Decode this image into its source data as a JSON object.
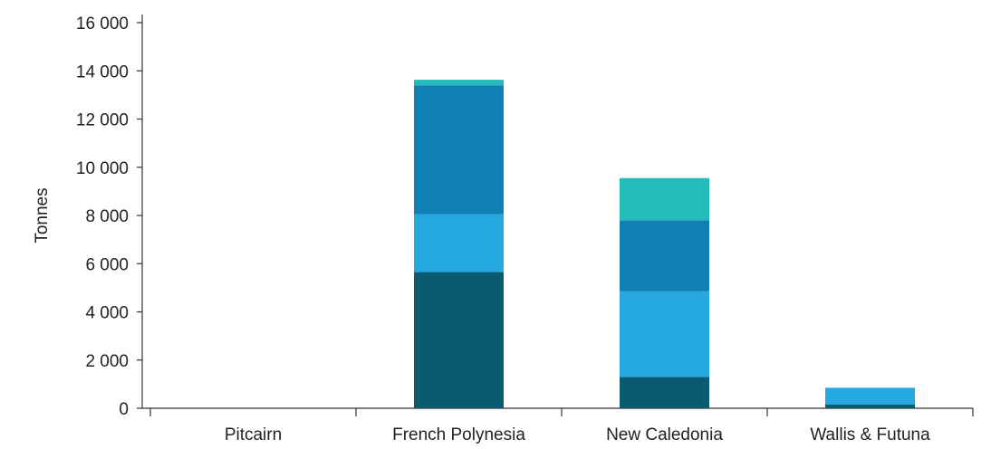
{
  "chart_data": {
    "type": "bar",
    "stacked": true,
    "ylabel": "Tonnes",
    "xlabel": "",
    "ylim": [
      0,
      16000
    ],
    "y_ticks": [
      0,
      2000,
      4000,
      6000,
      8000,
      10000,
      12000,
      14000,
      16000
    ],
    "y_tick_labels": [
      "0",
      "2 000",
      "4 000",
      "6 000",
      "8 000",
      "10 000",
      "12 000",
      "14 000",
      "16 000"
    ],
    "categories": [
      "Pitcairn",
      "French Polynesia",
      "New Caledonia",
      "Wallis & Futuna"
    ],
    "grid": false,
    "legend": "none",
    "series": [
      {
        "color": "#0b5a70",
        "values": [
          0,
          5650,
          1300,
          150
        ]
      },
      {
        "color": "#26a9e0",
        "values": [
          0,
          2400,
          3550,
          700
        ]
      },
      {
        "color": "#0f7fb4",
        "values": [
          0,
          5350,
          2950,
          0
        ]
      },
      {
        "color": "#22bcb9",
        "values": [
          0,
          230,
          1750,
          0
        ]
      }
    ]
  }
}
